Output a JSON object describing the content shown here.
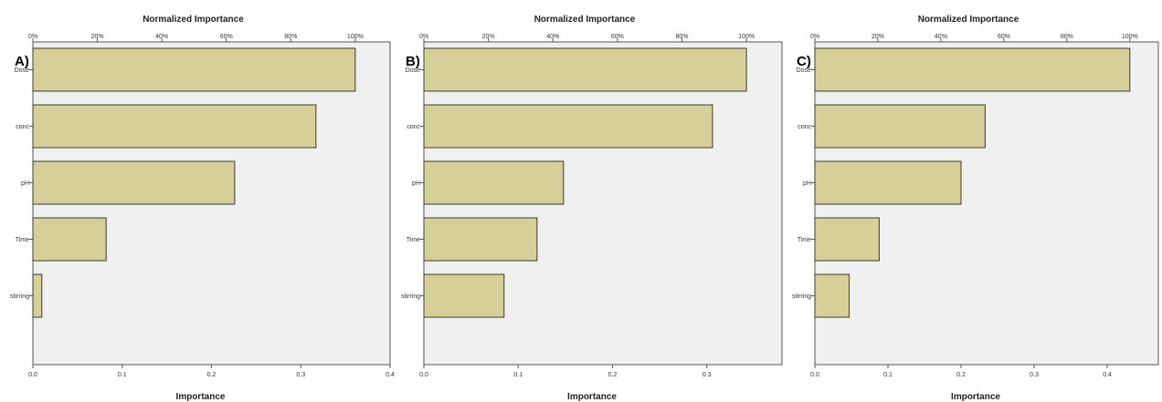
{
  "colors": {
    "bar_fill": "#d6cf9a",
    "bar_stroke": "#3c3c2a",
    "plot_bg": "#f0f0f0",
    "axis": "#555555"
  },
  "chart_data": [
    {
      "type": "bar",
      "orientation": "horizontal",
      "panel_label": "A)",
      "top_axis_title": "Normalized Importance",
      "bottom_axis_title": "Importance",
      "categories": [
        "Dose",
        "conc",
        "pH",
        "Time",
        "stirring"
      ],
      "values": [
        0.361,
        0.317,
        0.226,
        0.082,
        0.01
      ],
      "xlim": [
        0,
        0.4
      ],
      "x_ticks": [
        "0.0",
        "0.1",
        "0.2",
        "0.3",
        "0.4"
      ],
      "top_ticks": [
        "0%",
        "20%",
        "40%",
        "60%",
        "80%",
        "100%"
      ],
      "top_max": 0.361
    },
    {
      "type": "bar",
      "orientation": "horizontal",
      "panel_label": "B)",
      "top_axis_title": "Normalized Importance",
      "bottom_axis_title": "Importance",
      "categories": [
        "Dose",
        "conc",
        "pH",
        "Time",
        "stirring"
      ],
      "values": [
        0.342,
        0.306,
        0.148,
        0.12,
        0.085
      ],
      "xlim": [
        0,
        0.4
      ],
      "x_ticks": [
        "0.0",
        "0.1",
        "0.2",
        "0.3"
      ],
      "top_ticks": [
        "0%",
        "20%",
        "40%",
        "60%",
        "80%",
        "100%"
      ],
      "top_max": 0.342
    },
    {
      "type": "bar",
      "orientation": "horizontal",
      "panel_label": "C)",
      "top_axis_title": "Normalized Importance",
      "bottom_axis_title": "Importance",
      "categories": [
        "Dose",
        "conc",
        "pH",
        "Time",
        "stirring"
      ],
      "values": [
        0.431,
        0.233,
        0.2,
        0.088,
        0.047
      ],
      "xlim": [
        0,
        0.46
      ],
      "x_ticks": [
        "0.0",
        "0.1",
        "0.2",
        "0.3",
        "0.4"
      ],
      "top_ticks": [
        "0%",
        "20%",
        "40%",
        "60%",
        "80%",
        "100%"
      ],
      "top_max": 0.431
    }
  ]
}
